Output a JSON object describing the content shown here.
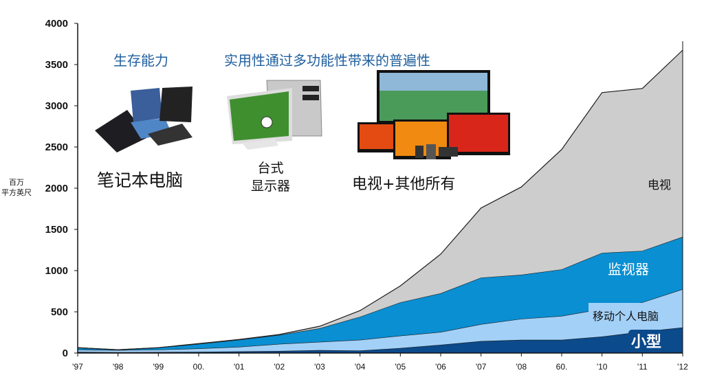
{
  "chart_data": {
    "type": "area",
    "stacked": true,
    "title": "",
    "ylabel": [
      "百万",
      "平方英尺"
    ],
    "xlabel": "",
    "ylim": [
      0,
      4000
    ],
    "yticks": [
      "0",
      "500",
      "1000",
      "1500",
      "2000",
      "2500",
      "3000",
      "3500",
      "4000"
    ],
    "categories": [
      "'97",
      "'98",
      "'99",
      "00.",
      "'01",
      "'02",
      "'03",
      "'04",
      "'05",
      "'06",
      "'07",
      "'08",
      "60.",
      "'10",
      "'11",
      "'12"
    ],
    "series": [
      {
        "name": "小型",
        "color": "#0b4a8b",
        "values": [
          15,
          10,
          12,
          15,
          20,
          25,
          35,
          30,
          60,
          100,
          145,
          160,
          160,
          200,
          260,
          310
        ]
      },
      {
        "name": "移动个人电脑",
        "color": "#a3d0f7",
        "values": [
          25,
          25,
          28,
          40,
          55,
          85,
          100,
          130,
          150,
          155,
          205,
          255,
          290,
          335,
          355,
          465
        ]
      },
      {
        "name": "监视器",
        "color": "#0a8fd2",
        "values": [
          25,
          5,
          25,
          55,
          85,
          110,
          165,
          280,
          405,
          470,
          565,
          535,
          565,
          680,
          625,
          635
        ]
      },
      {
        "name": "电视",
        "color": "#cdcdcd",
        "values": [
          0,
          0,
          0,
          5,
          5,
          5,
          25,
          75,
          200,
          475,
          845,
          1065,
          1455,
          1945,
          1970,
          2265
        ]
      }
    ],
    "grid": false,
    "legend": "inline-labels-right"
  },
  "annotations": {
    "heading_left": "生存能力",
    "heading_right": "实用性通过多功能性带来的普遍性",
    "laptop_caption": "笔记本电脑",
    "desktop_caption_line1": "台式",
    "desktop_caption_line2": "显示器",
    "tv_caption": "电视+其他所有"
  }
}
